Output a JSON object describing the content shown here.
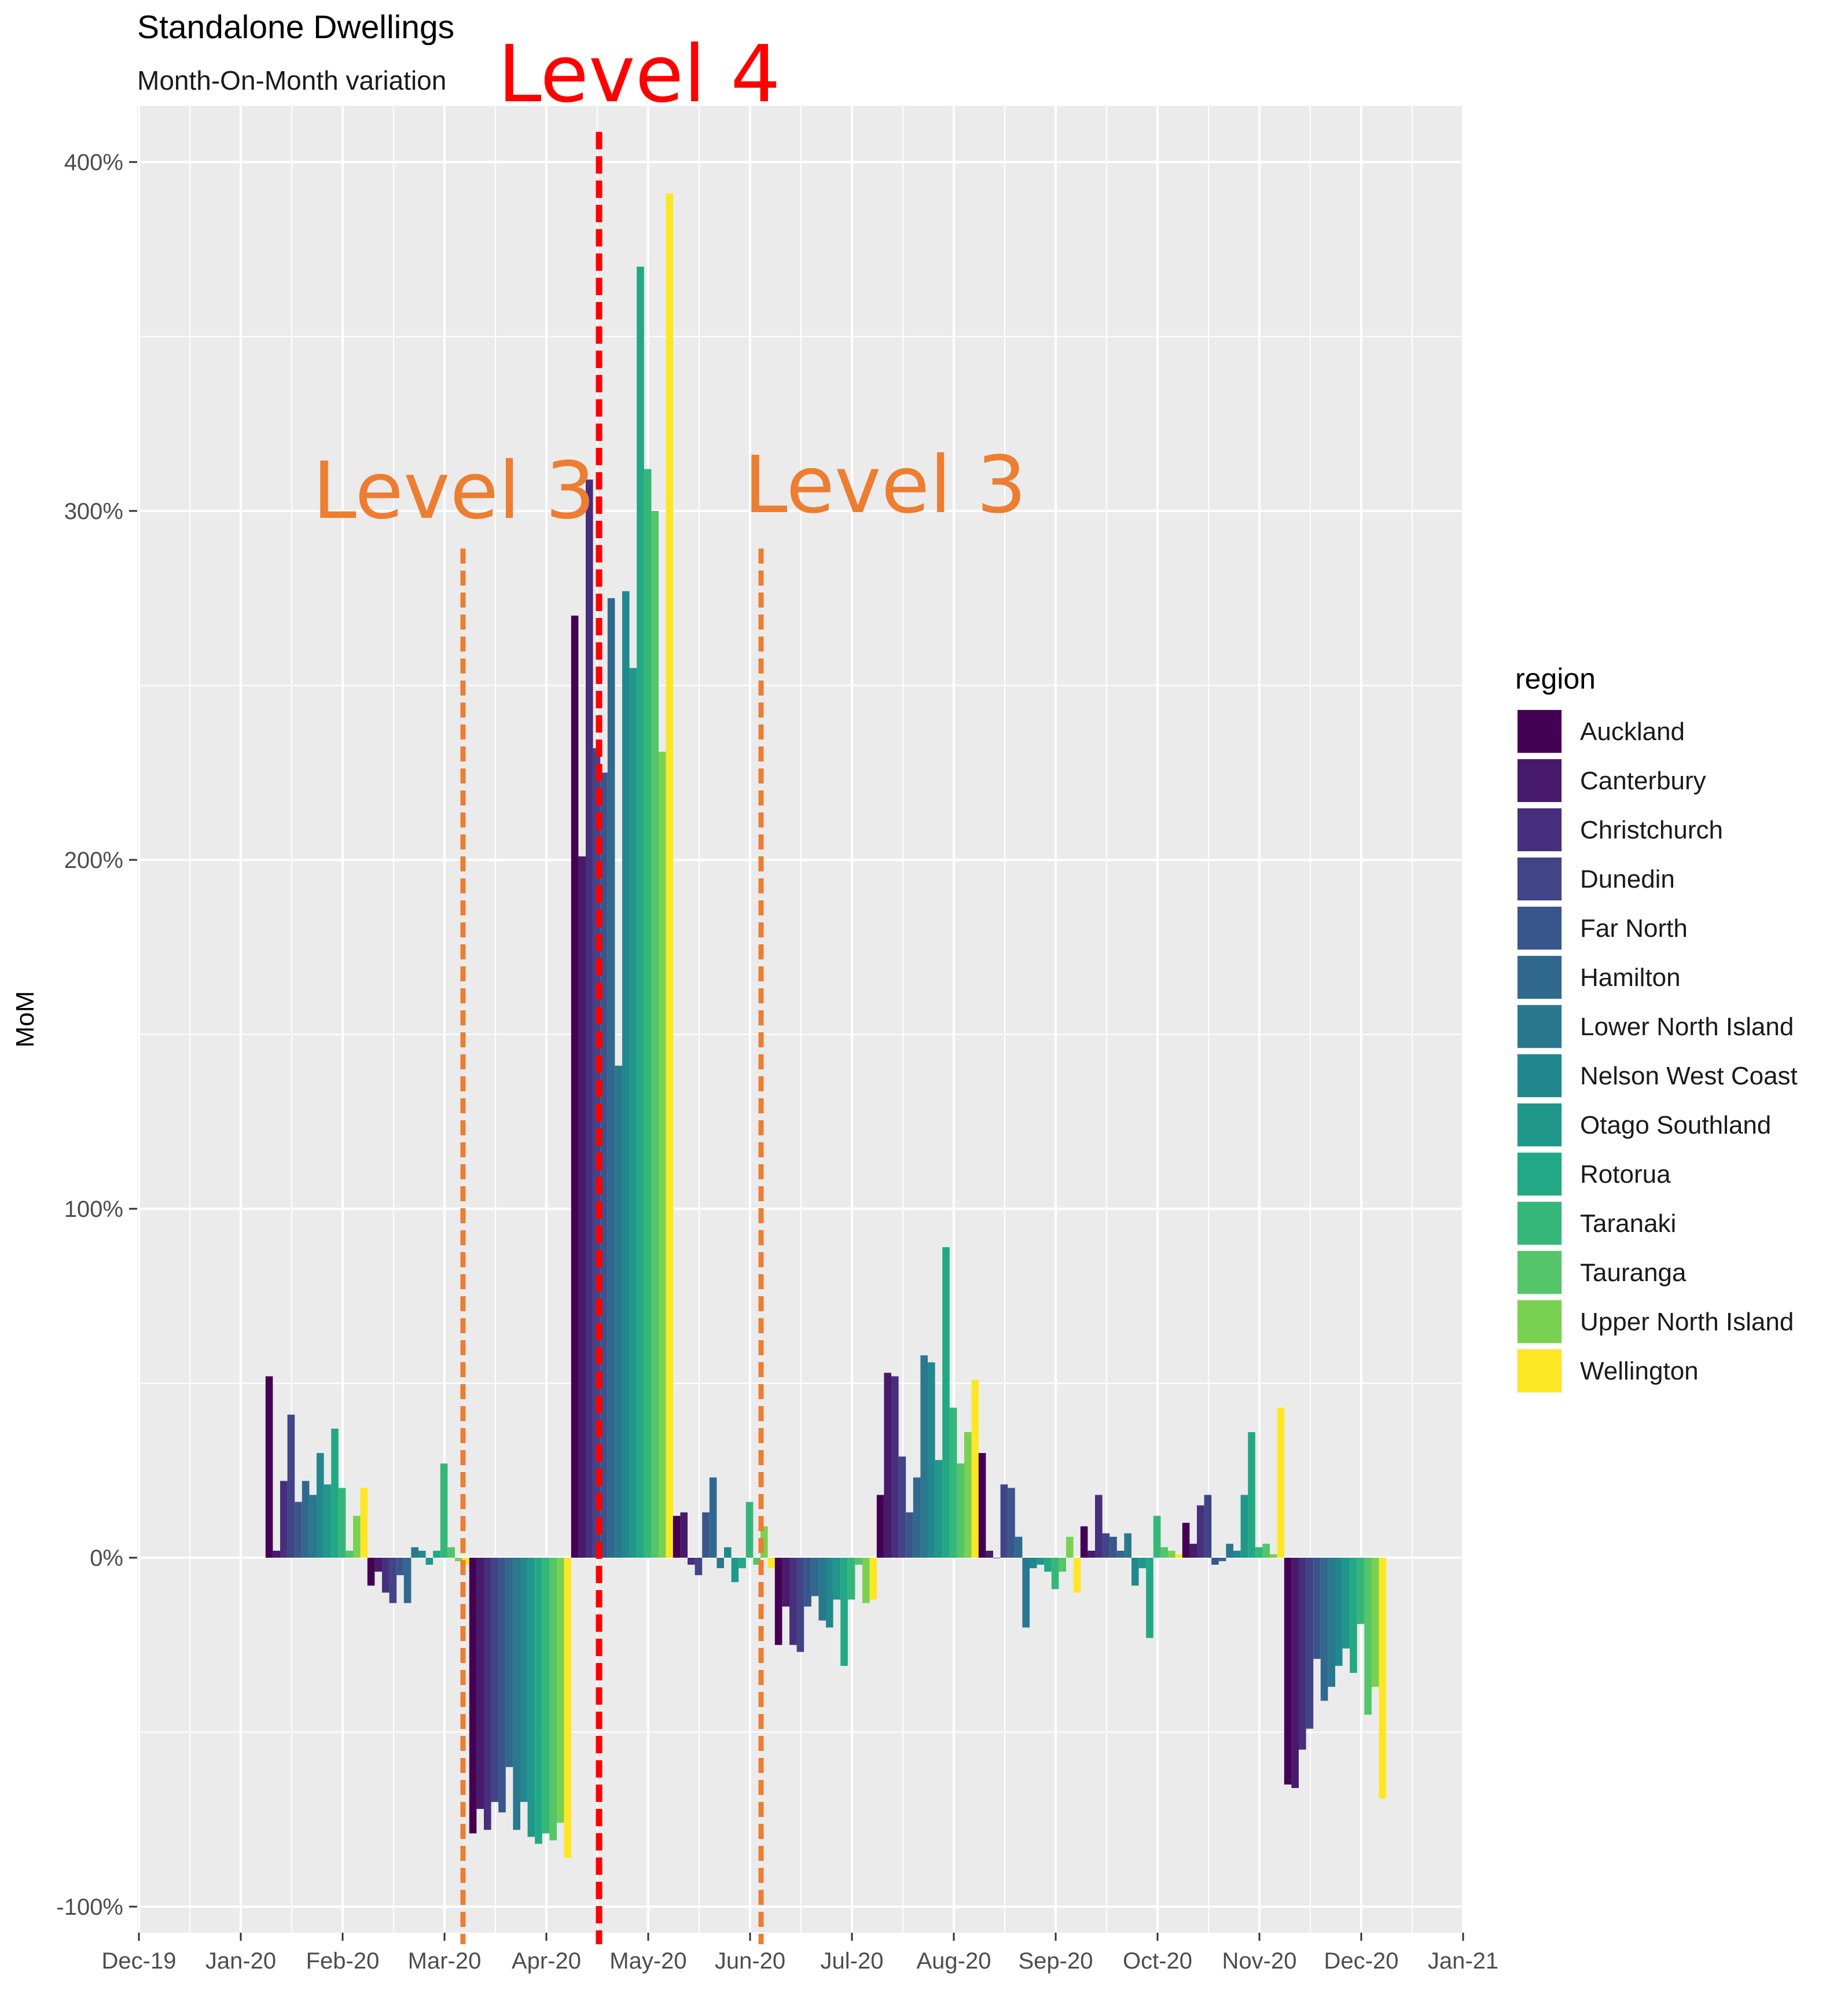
{
  "chart_data": {
    "type": "bar",
    "title": "Standalone Dwellings",
    "subtitle": "Month-On-Month variation",
    "xlabel": "",
    "ylabel": "MoM",
    "ylim": [
      -100,
      400
    ],
    "y_ticks": [
      -100,
      0,
      100,
      200,
      300,
      400
    ],
    "y_tick_labels": [
      "-100%",
      "0%",
      "100%",
      "200%",
      "300%",
      "400%"
    ],
    "x_ticks": [
      "Dec-19",
      "Jan-20",
      "Feb-20",
      "Mar-20",
      "Apr-20",
      "May-20",
      "Jun-20",
      "Jul-20",
      "Aug-20",
      "Sep-20",
      "Oct-20",
      "Nov-20",
      "Dec-20",
      "Jan-21"
    ],
    "grid": true,
    "legend": {
      "title": "region",
      "placement": "right"
    },
    "categories": [
      "Feb-20",
      "Mar-20",
      "Apr-20",
      "May-20",
      "Jun-20",
      "Jul-20",
      "Aug-20",
      "Sep-20",
      "Oct-20",
      "Nov-20",
      "Dec-20"
    ],
    "series": [
      {
        "name": "Auckland",
        "color": "#440154",
        "values": [
          52,
          -8,
          -79,
          270,
          12,
          -25,
          18,
          30,
          9,
          10,
          -65
        ]
      },
      {
        "name": "Canterbury",
        "color": "#481a6c",
        "values": [
          2,
          -4,
          -72,
          201,
          13,
          -14,
          53,
          2,
          2,
          4,
          -66
        ]
      },
      {
        "name": "Christchurch",
        "color": "#472f7d",
        "values": [
          22,
          -10,
          -78,
          309,
          -2,
          -25,
          52,
          0,
          18,
          15,
          -55
        ]
      },
      {
        "name": "Dunedin",
        "color": "#414487",
        "values": [
          41,
          -13,
          -70,
          232,
          -5,
          -27,
          29,
          21,
          7,
          18,
          -49
        ]
      },
      {
        "name": "Far North",
        "color": "#39568c",
        "values": [
          16,
          -5,
          -73,
          225,
          13,
          -14,
          13,
          20,
          6,
          -2,
          -29
        ]
      },
      {
        "name": "Hamilton",
        "color": "#31688e",
        "values": [
          22,
          -13,
          -60,
          275,
          23,
          -11,
          23,
          6,
          2,
          -1,
          -41
        ]
      },
      {
        "name": "Lower North Island",
        "color": "#2a788e",
        "values": [
          18,
          3,
          -78,
          141,
          -3,
          -18,
          58,
          -20,
          7,
          4,
          -37
        ]
      },
      {
        "name": "Nelson West Coast",
        "color": "#23888e",
        "values": [
          30,
          2,
          -70,
          277,
          3,
          -20,
          56,
          -3,
          -8,
          2,
          -31
        ]
      },
      {
        "name": "Otago Southland",
        "color": "#1f988b",
        "values": [
          21,
          -2,
          -80,
          255,
          -7,
          -12,
          28,
          -2,
          -3,
          18,
          -26
        ]
      },
      {
        "name": "Rotorua",
        "color": "#22a884",
        "values": [
          37,
          2,
          -82,
          370,
          -3,
          -31,
          89,
          -4,
          -23,
          36,
          -33
        ]
      },
      {
        "name": "Taranaki",
        "color": "#35b779",
        "values": [
          20,
          27,
          -79,
          312,
          16,
          -12,
          43,
          -9,
          12,
          3,
          -19
        ]
      },
      {
        "name": "Tauranga",
        "color": "#54c568",
        "values": [
          2,
          3,
          -81,
          300,
          -2,
          -2,
          27,
          -4,
          3,
          4,
          -45
        ]
      },
      {
        "name": "Upper North Island",
        "color": "#7ad151",
        "values": [
          12,
          -1,
          -76,
          231,
          9,
          -13,
          36,
          6,
          2,
          1,
          -37
        ]
      },
      {
        "name": "Wellington",
        "color": "#fde725",
        "values": [
          20,
          -2,
          -86,
          391,
          -3,
          -12,
          51,
          -10,
          1,
          43,
          -69
        ]
      }
    ],
    "annotations": [
      {
        "text": "Level 3",
        "date": "Mar-20",
        "color": "#ed7d31"
      },
      {
        "text": "Level 4",
        "date": "Apr-20",
        "color": "#ff0000"
      },
      {
        "text": "Level 3",
        "date": "Jun-20",
        "color": "#ed7d31"
      }
    ]
  }
}
